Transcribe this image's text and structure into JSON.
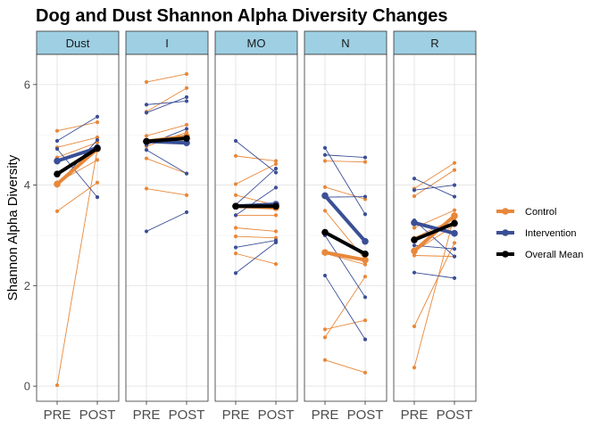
{
  "chart_data": {
    "type": "line",
    "title": "Dog and Dust Shannon Alpha Diversity Changes",
    "ylabel": "Shannon Alpha Diversity",
    "xlabel": "",
    "x_categories": [
      "PRE",
      "POST"
    ],
    "ylim": [
      -0.3,
      6.6
    ],
    "yticks": [
      0,
      2,
      4,
      6
    ],
    "grid": true,
    "legend_position": "right",
    "colors": {
      "Control": "#E8883A",
      "Intervention": "#3B4F96",
      "Overall Mean": "#000000"
    },
    "legend": [
      {
        "label": "Control",
        "color": "#E8883A"
      },
      {
        "label": "Intervention",
        "color": "#3B4F96"
      },
      {
        "label": "Overall Mean",
        "color": "#000000"
      }
    ],
    "facets": [
      {
        "label": "Dust",
        "individuals": [
          {
            "group": "Control",
            "pre": 5.08,
            "post": 5.25
          },
          {
            "group": "Control",
            "pre": 4.75,
            "post": 4.95
          },
          {
            "group": "Control",
            "pre": 4.55,
            "post": 4.85
          },
          {
            "group": "Control",
            "pre": 4.05,
            "post": 4.5
          },
          {
            "group": "Control",
            "pre": 3.48,
            "post": 4.05
          },
          {
            "group": "Control",
            "pre": 0.02,
            "post": 4.72
          },
          {
            "group": "Intervention",
            "pre": 4.88,
            "post": 5.36
          },
          {
            "group": "Intervention",
            "pre": 4.72,
            "post": 3.76
          },
          {
            "group": "Intervention",
            "pre": 4.45,
            "post": 4.78
          },
          {
            "group": "Intervention",
            "pre": 3.99,
            "post": 4.9
          }
        ],
        "means": [
          {
            "group": "Control",
            "pre": 4.02,
            "post": 4.72
          },
          {
            "group": "Intervention",
            "pre": 4.48,
            "post": 4.74
          },
          {
            "group": "Overall Mean",
            "pre": 4.22,
            "post": 4.73
          }
        ]
      },
      {
        "label": "I",
        "individuals": [
          {
            "group": "Control",
            "pre": 6.05,
            "post": 6.21
          },
          {
            "group": "Control",
            "pre": 5.46,
            "post": 5.93
          },
          {
            "group": "Control",
            "pre": 4.98,
            "post": 5.2
          },
          {
            "group": "Control",
            "pre": 4.77,
            "post": 5.05
          },
          {
            "group": "Control",
            "pre": 4.53,
            "post": 4.23
          },
          {
            "group": "Control",
            "pre": 3.93,
            "post": 3.8
          },
          {
            "group": "Intervention",
            "pre": 5.6,
            "post": 5.67
          },
          {
            "group": "Intervention",
            "pre": 5.44,
            "post": 5.75
          },
          {
            "group": "Intervention",
            "pre": 4.8,
            "post": 5.12
          },
          {
            "group": "Intervention",
            "pre": 4.7,
            "post": 4.23
          },
          {
            "group": "Intervention",
            "pre": 3.08,
            "post": 3.46
          }
        ],
        "means": [
          {
            "group": "Control",
            "pre": 4.87,
            "post": 4.97
          },
          {
            "group": "Intervention",
            "pre": 4.87,
            "post": 4.84
          },
          {
            "group": "Overall Mean",
            "pre": 4.87,
            "post": 4.93
          }
        ]
      },
      {
        "label": "MO",
        "individuals": [
          {
            "group": "Control",
            "pre": 4.58,
            "post": 4.48
          },
          {
            "group": "Control",
            "pre": 4.02,
            "post": 4.42
          },
          {
            "group": "Control",
            "pre": 3.8,
            "post": 3.6
          },
          {
            "group": "Control",
            "pre": 3.4,
            "post": 3.4
          },
          {
            "group": "Control",
            "pre": 3.15,
            "post": 3.08
          },
          {
            "group": "Control",
            "pre": 2.98,
            "post": 2.95
          },
          {
            "group": "Control",
            "pre": 2.64,
            "post": 2.43
          },
          {
            "group": "Intervention",
            "pre": 4.88,
            "post": 4.25
          },
          {
            "group": "Intervention",
            "pre": 3.61,
            "post": 4.33
          },
          {
            "group": "Intervention",
            "pre": 3.4,
            "post": 3.95
          },
          {
            "group": "Intervention",
            "pre": 2.76,
            "post": 2.9
          },
          {
            "group": "Intervention",
            "pre": 2.25,
            "post": 2.86
          }
        ],
        "means": [
          {
            "group": "Control",
            "pre": 3.58,
            "post": 3.55
          },
          {
            "group": "Intervention",
            "pre": 3.58,
            "post": 3.62
          },
          {
            "group": "Overall Mean",
            "pre": 3.58,
            "post": 3.58
          }
        ]
      },
      {
        "label": "N",
        "individuals": [
          {
            "group": "Control",
            "pre": 4.48,
            "post": 4.46
          },
          {
            "group": "Control",
            "pre": 3.96,
            "post": 3.72
          },
          {
            "group": "Control",
            "pre": 3.49,
            "post": 2.52
          },
          {
            "group": "Control",
            "pre": 2.64,
            "post": 2.42
          },
          {
            "group": "Control",
            "pre": 1.13,
            "post": 1.31
          },
          {
            "group": "Control",
            "pre": 0.97,
            "post": 2.18
          },
          {
            "group": "Control",
            "pre": 0.52,
            "post": 0.27
          },
          {
            "group": "Intervention",
            "pre": 4.74,
            "post": 3.42
          },
          {
            "group": "Intervention",
            "pre": 4.6,
            "post": 4.55
          },
          {
            "group": "Intervention",
            "pre": 3.76,
            "post": 3.77
          },
          {
            "group": "Intervention",
            "pre": 3.0,
            "post": 1.77
          },
          {
            "group": "Intervention",
            "pre": 2.2,
            "post": 0.93
          }
        ],
        "means": [
          {
            "group": "Control",
            "pre": 2.66,
            "post": 2.51
          },
          {
            "group": "Intervention",
            "pre": 3.79,
            "post": 2.88
          },
          {
            "group": "Overall Mean",
            "pre": 3.06,
            "post": 2.63
          }
        ]
      },
      {
        "label": "R",
        "individuals": [
          {
            "group": "Control",
            "pre": 3.93,
            "post": 4.44
          },
          {
            "group": "Control",
            "pre": 3.78,
            "post": 4.3
          },
          {
            "group": "Control",
            "pre": 3.15,
            "post": 3.5
          },
          {
            "group": "Control",
            "pre": 2.95,
            "post": 3.33
          },
          {
            "group": "Control",
            "pre": 2.68,
            "post": 3.2
          },
          {
            "group": "Control",
            "pre": 2.6,
            "post": 2.58
          },
          {
            "group": "Control",
            "pre": 1.19,
            "post": 2.85
          },
          {
            "group": "Control",
            "pre": 0.37,
            "post": 3.4
          },
          {
            "group": "Intervention",
            "pre": 4.13,
            "post": 3.77
          },
          {
            "group": "Intervention",
            "pre": 3.9,
            "post": 4.0
          },
          {
            "group": "Intervention",
            "pre": 3.3,
            "post": 2.58
          },
          {
            "group": "Intervention",
            "pre": 2.26,
            "post": 2.15
          },
          {
            "group": "Intervention",
            "pre": 2.8,
            "post": 2.73
          }
        ],
        "means": [
          {
            "group": "Control",
            "pre": 2.69,
            "post": 3.39
          },
          {
            "group": "Intervention",
            "pre": 3.25,
            "post": 3.04
          },
          {
            "group": "Overall Mean",
            "pre": 2.91,
            "post": 3.24
          }
        ]
      }
    ]
  }
}
